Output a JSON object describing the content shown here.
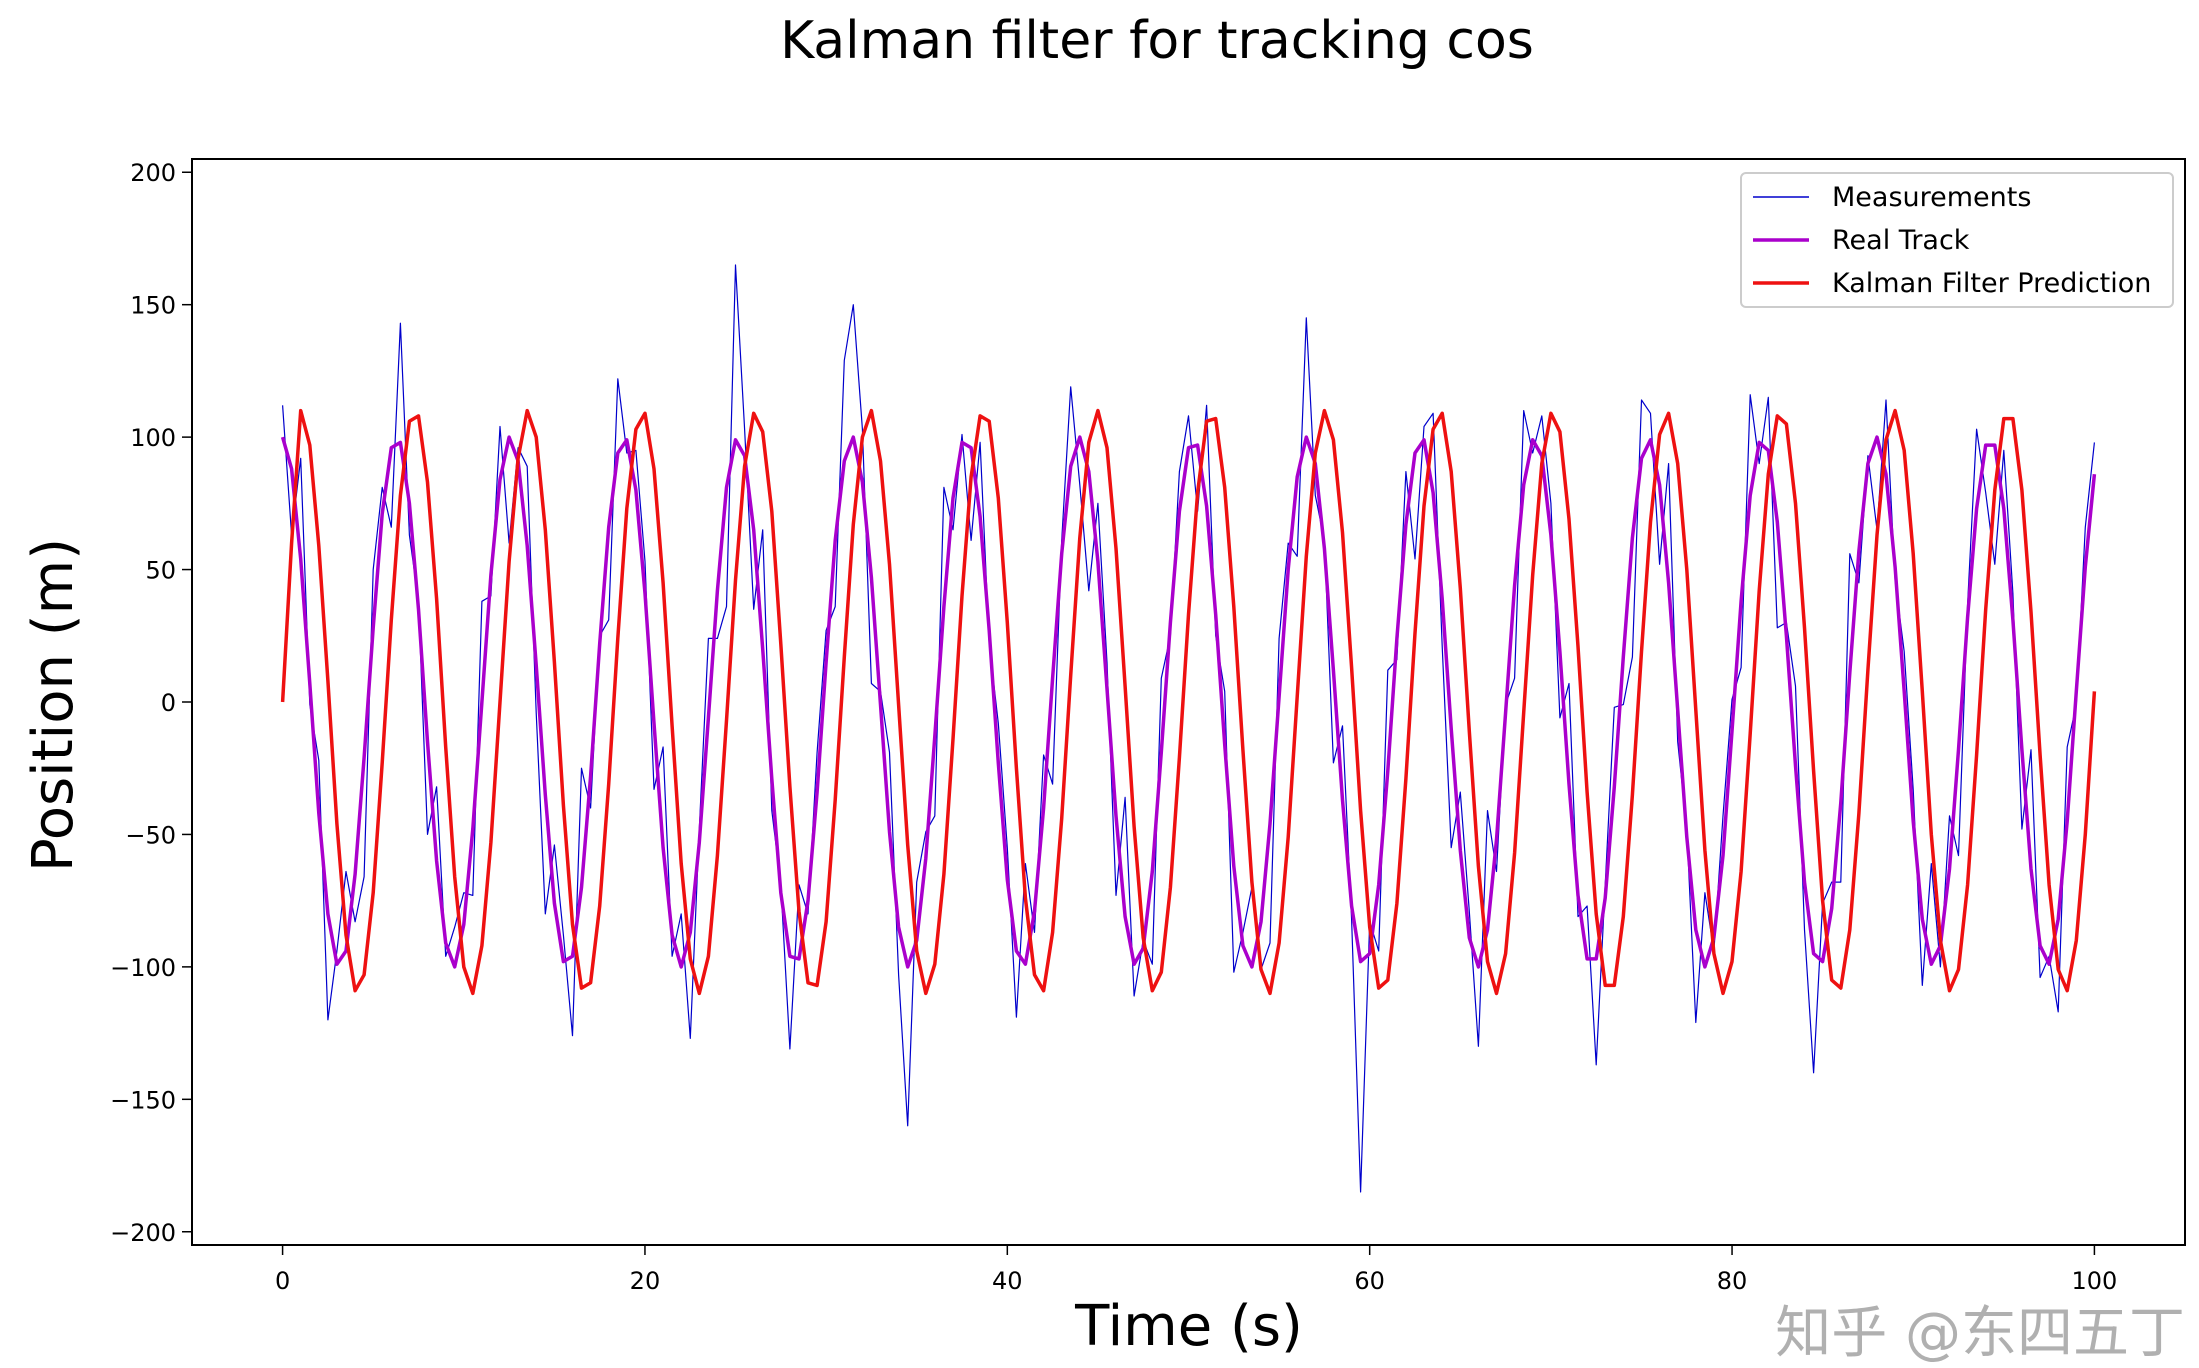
{
  "chart_data": {
    "type": "line",
    "title": "Kalman filter for tracking cos",
    "xlabel": "Time (s)",
    "ylabel": "Position (m)",
    "xlim": [
      -5,
      105
    ],
    "ylim": [
      -205,
      205
    ],
    "xticks": [
      0,
      20,
      40,
      60,
      80,
      100
    ],
    "yticks": [
      200,
      150,
      100,
      50,
      0,
      -50,
      -100,
      -150,
      -200
    ],
    "ytick_labels": [
      "200",
      "150",
      "100",
      "50",
      "0",
      "−50",
      "−100",
      "−150",
      "−200"
    ],
    "grid": false,
    "legend_position": "top-right",
    "x_start": 0,
    "x_step": 0.5,
    "series": [
      {
        "name": "Measurements",
        "color": "#0000cc",
        "values": [
          112,
          63,
          92,
          -1,
          -22,
          -120,
          -94,
          -64,
          -83,
          -66,
          50,
          81,
          66,
          143,
          63,
          38,
          -50,
          -32,
          -96,
          -85,
          -72,
          -73,
          38,
          40,
          104,
          60,
          96,
          89,
          -4,
          -80,
          -54,
          -88,
          -126,
          -25,
          -40,
          25,
          31,
          122,
          94,
          95,
          53,
          -33,
          -17,
          -96,
          -80,
          -127,
          -48,
          24,
          24,
          36,
          165,
          103,
          35,
          65,
          -41,
          -69,
          -131,
          -69,
          -80,
          -19,
          27,
          36,
          129,
          150,
          103,
          7,
          4,
          -19,
          -103,
          -160,
          -68,
          -49,
          -43,
          81,
          65,
          101,
          61,
          98,
          22,
          -8,
          -55,
          -119,
          -61,
          -87,
          -20,
          -31,
          61,
          119,
          82,
          42,
          75,
          15,
          -73,
          -36,
          -111,
          -90,
          -99,
          9,
          25,
          87,
          108,
          72,
          112,
          25,
          4,
          -102,
          -87,
          -70,
          -101,
          -91,
          24,
          60,
          55,
          145,
          78,
          61,
          -23,
          -9,
          -82,
          -185,
          -83,
          -94,
          12,
          16,
          87,
          54,
          104,
          109,
          21,
          -55,
          -34,
          -79,
          -130,
          -41,
          -64,
          -1,
          9,
          110,
          94,
          108,
          75,
          -6,
          7,
          -81,
          -77,
          -137,
          -69,
          -2,
          -1,
          17,
          114,
          109,
          52,
          90,
          -15,
          -48,
          -121,
          -72,
          -94,
          -43,
          1,
          13,
          116,
          90,
          115,
          28,
          30,
          6,
          -86,
          -140,
          -76,
          -68,
          -68,
          56,
          45,
          93,
          65,
          114,
          46,
          19,
          -33,
          -107,
          -61,
          -100,
          -43,
          -58,
          37,
          103,
          79,
          52,
          95,
          41,
          -48,
          -18,
          -104,
          -96,
          -117,
          -17,
          -1,
          66,
          98
        ]
      },
      {
        "name": "Real Track",
        "color": "#aa00cc",
        "values": [
          100,
          88,
          54,
          7,
          -42,
          -80,
          -99,
          -94,
          -65,
          -21,
          28,
          71,
          96,
          98,
          75,
          35,
          -15,
          -60,
          -91,
          -100,
          -84,
          -48,
          0,
          48,
          84,
          100,
          91,
          59,
          14,
          -35,
          -76,
          -98,
          -96,
          -70,
          -28,
          22,
          66,
          94,
          99,
          80,
          41,
          -8,
          -55,
          -88,
          -100,
          -87,
          -53,
          -6,
          42,
          81,
          99,
          93,
          65,
          20,
          -29,
          -72,
          -96,
          -97,
          -75,
          -34,
          15,
          61,
          91,
          100,
          83,
          47,
          -1,
          -49,
          -85,
          -100,
          -90,
          -59,
          -13,
          36,
          77,
          98,
          96,
          70,
          27,
          -23,
          -67,
          -94,
          -99,
          -79,
          -40,
          9,
          56,
          89,
          100,
          87,
          53,
          5,
          -43,
          -81,
          -99,
          -93,
          -64,
          -19,
          30,
          72,
          96,
          97,
          74,
          33,
          -16,
          -62,
          -92,
          -100,
          -83,
          -46,
          2,
          50,
          85,
          100,
          90,
          58,
          12,
          -37,
          -77,
          -98,
          -95,
          -69,
          -26,
          24,
          67,
          94,
          99,
          79,
          39,
          -10,
          -56,
          -89,
          -100,
          -86,
          -52,
          -4,
          44,
          82,
          99,
          93,
          63,
          19,
          -31,
          -73,
          -97,
          -97,
          -74,
          -32,
          17,
          62,
          92,
          99,
          82,
          45,
          -3,
          -51,
          -86,
          -100,
          -89,
          -58,
          -11,
          38,
          78,
          98,
          95,
          68,
          25,
          -24,
          -68,
          -95,
          -98,
          -78,
          -38,
          11,
          57,
          90,
          100,
          86,
          51,
          4,
          -45,
          -82,
          -99,
          -92,
          -63,
          -18,
          32,
          73,
          97,
          97,
          73,
          31,
          -18,
          -63,
          -92,
          -99,
          -82,
          -45,
          4,
          51,
          86
        ]
      },
      {
        "name": "Kalman Filter Prediction",
        "color": "#ee1111",
        "values": [
          0,
          60,
          110,
          97,
          59,
          8,
          -46,
          -88,
          -109,
          -103,
          -72,
          -23,
          31,
          78,
          106,
          108,
          83,
          39,
          -17,
          -66,
          -100,
          -110,
          -92,
          -53,
          0,
          53,
          92,
          110,
          100,
          65,
          15,
          -39,
          -84,
          -108,
          -106,
          -77,
          -31,
          24,
          73,
          103,
          109,
          88,
          45,
          -9,
          -61,
          -97,
          -110,
          -96,
          -58,
          -7,
          46,
          89,
          109,
          102,
          72,
          22,
          -32,
          -79,
          -106,
          -107,
          -83,
          -37,
          17,
          67,
          100,
          110,
          91,
          52,
          -1,
          -54,
          -94,
          -110,
          -99,
          -65,
          -14,
          40,
          85,
          108,
          106,
          77,
          30,
          -25,
          -74,
          -103,
          -109,
          -87,
          -44,
          10,
          62,
          98,
          110,
          96,
          58,
          6,
          -47,
          -89,
          -109,
          -102,
          -70,
          -21,
          33,
          79,
          106,
          107,
          81,
          36,
          -18,
          -68,
          -101,
          -110,
          -91,
          -51,
          2,
          55,
          94,
          110,
          99,
          64,
          13,
          -41,
          -85,
          -108,
          -105,
          -76,
          -29,
          26,
          74,
          103,
          109,
          87,
          43,
          -11,
          -62,
          -98,
          -110,
          -95,
          -57,
          -4,
          48,
          90,
          109,
          102,
          69,
          21,
          -34,
          -80,
          -107,
          -107,
          -81,
          -35,
          19,
          68,
          101,
          109,
          90,
          50,
          -3,
          -56,
          -95,
          -110,
          -98,
          -64,
          -12,
          42,
          86,
          108,
          105,
          75,
          28,
          -26,
          -75,
          -105,
          -108,
          -86,
          -42,
          12,
          63,
          99,
          110,
          95,
          56,
          4,
          -50,
          -90,
          -109,
          -101,
          -69,
          -20,
          35,
          80,
          107,
          107,
          80,
          34,
          -20,
          -69,
          -101,
          -109,
          -90,
          -50,
          4
        ]
      }
    ]
  },
  "watermark": "知乎 @东四五丁"
}
